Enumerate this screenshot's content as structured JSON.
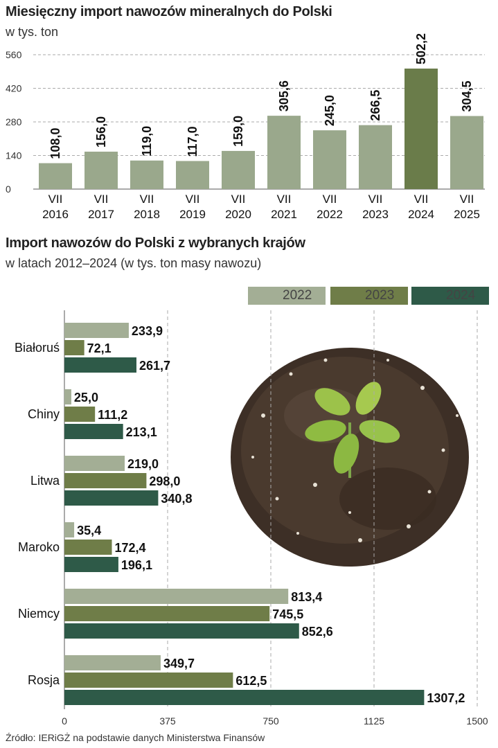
{
  "colors": {
    "bar_default": "#9aa88c",
    "bar_highlight": "#6a7c4a",
    "s2022": "#a3ae95",
    "s2023": "#6f7d48",
    "s2024": "#2e5a48"
  },
  "chart_data": [
    {
      "type": "bar",
      "title": "Miesięczny import nawozów mineralnych do Polski",
      "subtitle": "w tys. ton",
      "categories_month": [
        "VII",
        "VII",
        "VII",
        "VII",
        "VII",
        "VII",
        "VII",
        "VII",
        "VII",
        "VII"
      ],
      "categories_year": [
        "2016",
        "2017",
        "2018",
        "2019",
        "2020",
        "2021",
        "2022",
        "2023",
        "2024",
        "2025"
      ],
      "values": [
        108.0,
        156.0,
        119.0,
        117.0,
        159.0,
        305.6,
        245.0,
        266.5,
        502.2,
        304.5
      ],
      "value_labels": [
        "108,0",
        "156,0",
        "119,0",
        "117,0",
        "159,0",
        "305,6",
        "245,0",
        "266,5",
        "502,2",
        "304,5"
      ],
      "highlight_index": 8,
      "yticks": [
        "0",
        "140",
        "280",
        "420",
        "560"
      ],
      "ylim": [
        0,
        560
      ],
      "grid": true
    },
    {
      "type": "bar",
      "orientation": "horizontal",
      "title": "Import nawozów do Polski z wybranych krajów",
      "subtitle": "w latach 2012–2024 (w tys. ton masy nawozu)",
      "categories": [
        "Białoruś",
        "Chiny",
        "Litwa",
        "Maroko",
        "Niemcy",
        "Rosja"
      ],
      "series": [
        {
          "name": "2022",
          "values": [
            233.9,
            25.0,
            219.0,
            35.4,
            813.4,
            349.7
          ],
          "labels": [
            "233,9",
            "25,0",
            "219,0",
            "35,4",
            "813,4",
            "349,7"
          ]
        },
        {
          "name": "2023",
          "values": [
            72.1,
            111.2,
            298.0,
            172.4,
            745.5,
            612.5
          ],
          "labels": [
            "72,1",
            "111,2",
            "298,0",
            "172,4",
            "745,5",
            "612,5"
          ]
        },
        {
          "name": "2024",
          "values": [
            261.7,
            213.1,
            340.8,
            196.1,
            852.6,
            1307.2
          ],
          "labels": [
            "261,7",
            "213,1",
            "340,8",
            "196,1",
            "852,6",
            "1307,2"
          ]
        }
      ],
      "xticks": [
        "0",
        "375",
        "750",
        "1125",
        "1500"
      ],
      "xlim": [
        0,
        1500
      ],
      "legend": "top-right",
      "grid": true
    }
  ],
  "source": "Źródło: IERiGŻ na podstawie danych Ministerstwa Finansów"
}
